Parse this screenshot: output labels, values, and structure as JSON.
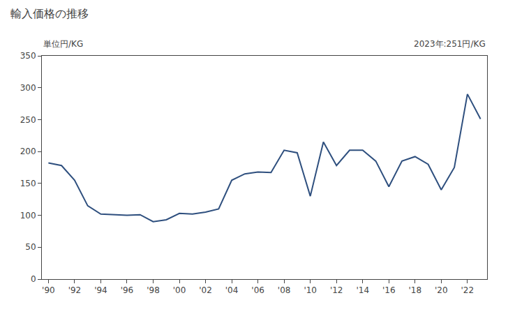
{
  "chart_data": {
    "type": "line",
    "title": "輸入価格の推移",
    "ylabel": "単位円/KG",
    "annotation": "2023年:251円/KG",
    "x": [
      1990,
      1991,
      1992,
      1993,
      1994,
      1995,
      1996,
      1997,
      1998,
      1999,
      2000,
      2001,
      2002,
      2003,
      2004,
      2005,
      2006,
      2007,
      2008,
      2009,
      2010,
      2011,
      2012,
      2013,
      2014,
      2015,
      2016,
      2017,
      2018,
      2019,
      2020,
      2021,
      2022,
      2023
    ],
    "values": [
      182,
      178,
      155,
      115,
      102,
      101,
      100,
      101,
      90,
      93,
      103,
      102,
      105,
      110,
      155,
      165,
      168,
      167,
      202,
      198,
      130,
      215,
      178,
      202,
      202,
      185,
      145,
      185,
      192,
      180,
      140,
      175,
      290,
      251
    ],
    "color": "#2e4f7e",
    "xlim": [
      1989.5,
      2023.5
    ],
    "xticks": [
      {
        "value": 1990,
        "label": "'90"
      },
      {
        "value": 1992,
        "label": "'92"
      },
      {
        "value": 1994,
        "label": "'94"
      },
      {
        "value": 1996,
        "label": "'96"
      },
      {
        "value": 1998,
        "label": "'98"
      },
      {
        "value": 2000,
        "label": "'00"
      },
      {
        "value": 2002,
        "label": "'02"
      },
      {
        "value": 2004,
        "label": "'04"
      },
      {
        "value": 2006,
        "label": "'06"
      },
      {
        "value": 2008,
        "label": "'08"
      },
      {
        "value": 2010,
        "label": "'10"
      },
      {
        "value": 2012,
        "label": "'12"
      },
      {
        "value": 2014,
        "label": "'14"
      },
      {
        "value": 2016,
        "label": "'16"
      },
      {
        "value": 2018,
        "label": "'18"
      },
      {
        "value": 2020,
        "label": "'20"
      },
      {
        "value": 2022,
        "label": "'22"
      }
    ],
    "ylim": [
      0,
      350
    ],
    "yticks": [
      0,
      50,
      100,
      150,
      200,
      250,
      300,
      350
    ],
    "grid": false
  }
}
